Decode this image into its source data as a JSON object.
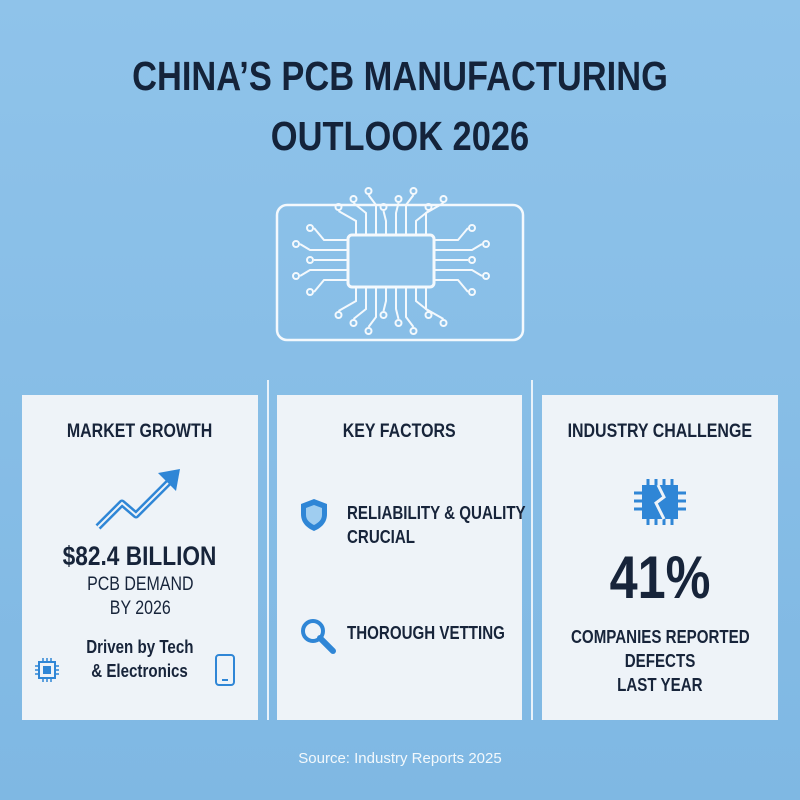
{
  "title": {
    "lines": [
      "CHINA’S PCB MANUFACTURING",
      "OUTLOOK 2026"
    ]
  },
  "panels": [
    {
      "heading": "MARKET GROWTH",
      "stat": "$82.4 BILLION",
      "description": [
        "PCB DEMAND",
        "BY 2026"
      ],
      "note": [
        "Driven by Tech",
        "& Electronics"
      ]
    },
    {
      "heading": "KEY FACTORS",
      "items": [
        [
          "RELIABILITY & QUALITY",
          "CRUCIAL"
        ],
        [
          "THOROUGH VETTING"
        ]
      ]
    },
    {
      "heading": "INDUSTRY CHALLENGE",
      "stat": "41%",
      "description": [
        "COMPANIES REPORTED",
        "DEFECTS",
        "LAST YEAR"
      ]
    }
  ],
  "source": "Source: Industry Reports 2025"
}
